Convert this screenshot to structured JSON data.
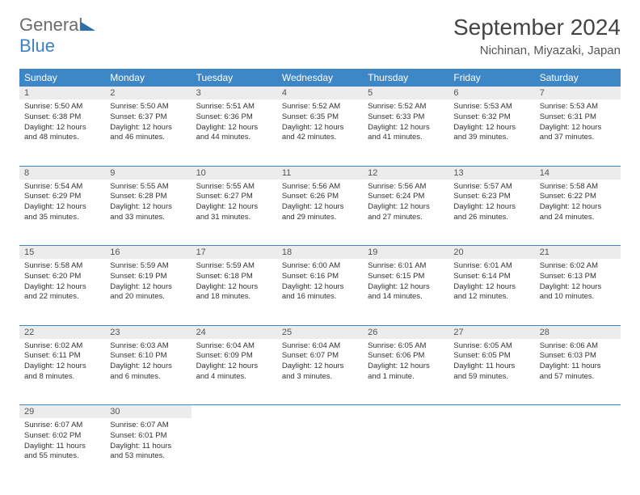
{
  "logo": {
    "word1": "General",
    "word2": "Blue"
  },
  "header": {
    "title": "September 2024",
    "location": "Nichinan, Miyazaki, Japan"
  },
  "colors": {
    "header_bg": "#3d87c6",
    "header_fg": "#ffffff",
    "daynum_bg": "#ececec",
    "rule": "#3d87c6",
    "logo_gray": "#6b6b6b",
    "logo_blue": "#3b82c4"
  },
  "weekdays": [
    "Sunday",
    "Monday",
    "Tuesday",
    "Wednesday",
    "Thursday",
    "Friday",
    "Saturday"
  ],
  "weeks": [
    [
      {
        "n": "1",
        "sr": "Sunrise: 5:50 AM",
        "ss": "Sunset: 6:38 PM",
        "d1": "Daylight: 12 hours",
        "d2": "and 48 minutes."
      },
      {
        "n": "2",
        "sr": "Sunrise: 5:50 AM",
        "ss": "Sunset: 6:37 PM",
        "d1": "Daylight: 12 hours",
        "d2": "and 46 minutes."
      },
      {
        "n": "3",
        "sr": "Sunrise: 5:51 AM",
        "ss": "Sunset: 6:36 PM",
        "d1": "Daylight: 12 hours",
        "d2": "and 44 minutes."
      },
      {
        "n": "4",
        "sr": "Sunrise: 5:52 AM",
        "ss": "Sunset: 6:35 PM",
        "d1": "Daylight: 12 hours",
        "d2": "and 42 minutes."
      },
      {
        "n": "5",
        "sr": "Sunrise: 5:52 AM",
        "ss": "Sunset: 6:33 PM",
        "d1": "Daylight: 12 hours",
        "d2": "and 41 minutes."
      },
      {
        "n": "6",
        "sr": "Sunrise: 5:53 AM",
        "ss": "Sunset: 6:32 PM",
        "d1": "Daylight: 12 hours",
        "d2": "and 39 minutes."
      },
      {
        "n": "7",
        "sr": "Sunrise: 5:53 AM",
        "ss": "Sunset: 6:31 PM",
        "d1": "Daylight: 12 hours",
        "d2": "and 37 minutes."
      }
    ],
    [
      {
        "n": "8",
        "sr": "Sunrise: 5:54 AM",
        "ss": "Sunset: 6:29 PM",
        "d1": "Daylight: 12 hours",
        "d2": "and 35 minutes."
      },
      {
        "n": "9",
        "sr": "Sunrise: 5:55 AM",
        "ss": "Sunset: 6:28 PM",
        "d1": "Daylight: 12 hours",
        "d2": "and 33 minutes."
      },
      {
        "n": "10",
        "sr": "Sunrise: 5:55 AM",
        "ss": "Sunset: 6:27 PM",
        "d1": "Daylight: 12 hours",
        "d2": "and 31 minutes."
      },
      {
        "n": "11",
        "sr": "Sunrise: 5:56 AM",
        "ss": "Sunset: 6:26 PM",
        "d1": "Daylight: 12 hours",
        "d2": "and 29 minutes."
      },
      {
        "n": "12",
        "sr": "Sunrise: 5:56 AM",
        "ss": "Sunset: 6:24 PM",
        "d1": "Daylight: 12 hours",
        "d2": "and 27 minutes."
      },
      {
        "n": "13",
        "sr": "Sunrise: 5:57 AM",
        "ss": "Sunset: 6:23 PM",
        "d1": "Daylight: 12 hours",
        "d2": "and 26 minutes."
      },
      {
        "n": "14",
        "sr": "Sunrise: 5:58 AM",
        "ss": "Sunset: 6:22 PM",
        "d1": "Daylight: 12 hours",
        "d2": "and 24 minutes."
      }
    ],
    [
      {
        "n": "15",
        "sr": "Sunrise: 5:58 AM",
        "ss": "Sunset: 6:20 PM",
        "d1": "Daylight: 12 hours",
        "d2": "and 22 minutes."
      },
      {
        "n": "16",
        "sr": "Sunrise: 5:59 AM",
        "ss": "Sunset: 6:19 PM",
        "d1": "Daylight: 12 hours",
        "d2": "and 20 minutes."
      },
      {
        "n": "17",
        "sr": "Sunrise: 5:59 AM",
        "ss": "Sunset: 6:18 PM",
        "d1": "Daylight: 12 hours",
        "d2": "and 18 minutes."
      },
      {
        "n": "18",
        "sr": "Sunrise: 6:00 AM",
        "ss": "Sunset: 6:16 PM",
        "d1": "Daylight: 12 hours",
        "d2": "and 16 minutes."
      },
      {
        "n": "19",
        "sr": "Sunrise: 6:01 AM",
        "ss": "Sunset: 6:15 PM",
        "d1": "Daylight: 12 hours",
        "d2": "and 14 minutes."
      },
      {
        "n": "20",
        "sr": "Sunrise: 6:01 AM",
        "ss": "Sunset: 6:14 PM",
        "d1": "Daylight: 12 hours",
        "d2": "and 12 minutes."
      },
      {
        "n": "21",
        "sr": "Sunrise: 6:02 AM",
        "ss": "Sunset: 6:13 PM",
        "d1": "Daylight: 12 hours",
        "d2": "and 10 minutes."
      }
    ],
    [
      {
        "n": "22",
        "sr": "Sunrise: 6:02 AM",
        "ss": "Sunset: 6:11 PM",
        "d1": "Daylight: 12 hours",
        "d2": "and 8 minutes."
      },
      {
        "n": "23",
        "sr": "Sunrise: 6:03 AM",
        "ss": "Sunset: 6:10 PM",
        "d1": "Daylight: 12 hours",
        "d2": "and 6 minutes."
      },
      {
        "n": "24",
        "sr": "Sunrise: 6:04 AM",
        "ss": "Sunset: 6:09 PM",
        "d1": "Daylight: 12 hours",
        "d2": "and 4 minutes."
      },
      {
        "n": "25",
        "sr": "Sunrise: 6:04 AM",
        "ss": "Sunset: 6:07 PM",
        "d1": "Daylight: 12 hours",
        "d2": "and 3 minutes."
      },
      {
        "n": "26",
        "sr": "Sunrise: 6:05 AM",
        "ss": "Sunset: 6:06 PM",
        "d1": "Daylight: 12 hours",
        "d2": "and 1 minute."
      },
      {
        "n": "27",
        "sr": "Sunrise: 6:05 AM",
        "ss": "Sunset: 6:05 PM",
        "d1": "Daylight: 11 hours",
        "d2": "and 59 minutes."
      },
      {
        "n": "28",
        "sr": "Sunrise: 6:06 AM",
        "ss": "Sunset: 6:03 PM",
        "d1": "Daylight: 11 hours",
        "d2": "and 57 minutes."
      }
    ],
    [
      {
        "n": "29",
        "sr": "Sunrise: 6:07 AM",
        "ss": "Sunset: 6:02 PM",
        "d1": "Daylight: 11 hours",
        "d2": "and 55 minutes."
      },
      {
        "n": "30",
        "sr": "Sunrise: 6:07 AM",
        "ss": "Sunset: 6:01 PM",
        "d1": "Daylight: 11 hours",
        "d2": "and 53 minutes."
      },
      {
        "empty": true
      },
      {
        "empty": true
      },
      {
        "empty": true
      },
      {
        "empty": true
      },
      {
        "empty": true
      }
    ]
  ]
}
